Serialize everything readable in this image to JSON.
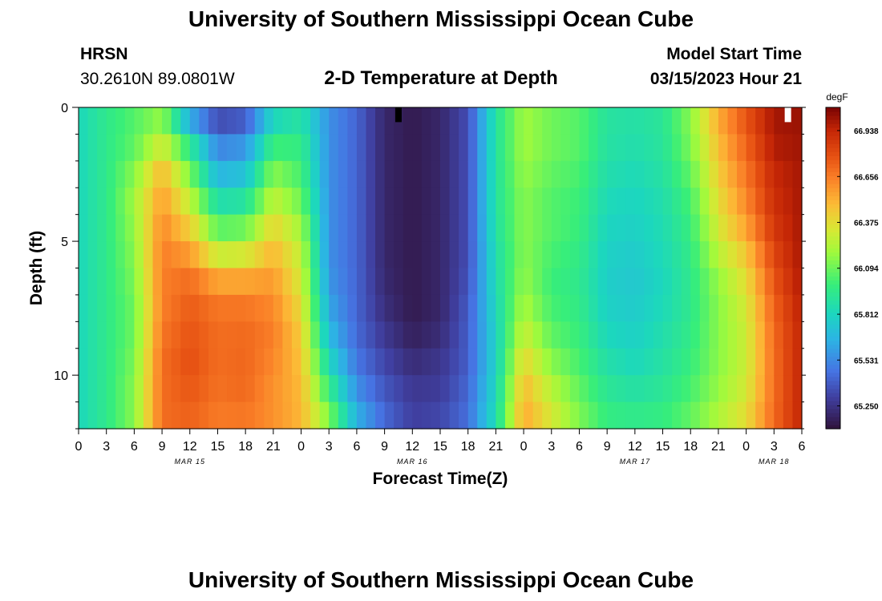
{
  "page": {
    "title": "University of Southern Mississippi Ocean Cube",
    "footer_title": "University of Southern Mississippi Ocean Cube",
    "station_name": "HRSN",
    "station_coords": "30.2610N  89.0801W",
    "plot_title": "2-D Temperature at Depth",
    "model_label": "Model Start Time",
    "model_time": "03/15/2023 Hour 21"
  },
  "chart_data": {
    "type": "heatmap",
    "title": "2-D Temperature at Depth",
    "xlabel": "Forecast Time(Z)",
    "ylabel": "Depth (ft)",
    "x_tick_labels": [
      "0",
      "3",
      "6",
      "9",
      "12",
      "15",
      "18",
      "21",
      "0",
      "3",
      "6",
      "9",
      "12",
      "15",
      "18",
      "21",
      "0",
      "3",
      "6",
      "9",
      "12",
      "15",
      "18",
      "21",
      "0",
      "3",
      "6"
    ],
    "date_labels": [
      {
        "label": "MAR 15",
        "tick_index": 4
      },
      {
        "label": "MAR 16",
        "tick_index": 12
      },
      {
        "label": "MAR 17",
        "tick_index": 20
      },
      {
        "label": "MAR 18",
        "tick_index": 25
      }
    ],
    "y_tick_labels": [
      "0",
      "5",
      "10"
    ],
    "y_ticks": [
      0,
      5,
      10
    ],
    "ylim": [
      0,
      12
    ],
    "y_reversed": true,
    "colorbar": {
      "unit": "degF",
      "tick_labels": [
        "66.938",
        "66.656",
        "66.375",
        "66.094",
        "65.812",
        "65.531",
        "65.250"
      ],
      "ticks": [
        66.938,
        66.656,
        66.375,
        66.094,
        65.812,
        65.531,
        65.25
      ],
      "range": [
        65.11,
        67.08
      ]
    },
    "grid": false,
    "time_start": "03/15/2023 Hour 00",
    "time_step_hours": 3,
    "depths_ft": [
      0,
      1,
      2,
      3,
      4,
      5,
      6,
      7,
      8,
      9,
      10,
      11,
      12
    ],
    "columns": [
      {
        "hour": 0,
        "temps": [
          65.82,
          65.82,
          65.82,
          65.82,
          65.82,
          65.82,
          65.82,
          65.82,
          65.82,
          65.82,
          65.82,
          65.82,
          65.82
        ]
      },
      {
        "hour": 3,
        "temps": [
          65.95,
          65.95,
          65.95,
          65.95,
          65.95,
          65.95,
          65.95,
          65.95,
          65.95,
          65.95,
          65.95,
          65.95,
          65.95
        ]
      },
      {
        "hour": 6,
        "temps": [
          66.05,
          66.05,
          66.1,
          66.2,
          66.2,
          66.15,
          66.15,
          66.1,
          66.1,
          66.1,
          66.15,
          66.15,
          66.15
        ]
      },
      {
        "hour": 9,
        "temps": [
          66.15,
          66.2,
          66.45,
          66.55,
          66.6,
          66.65,
          66.65,
          66.65,
          66.65,
          66.7,
          66.7,
          66.7,
          66.7
        ]
      },
      {
        "hour": 12,
        "temps": [
          65.45,
          65.85,
          66.05,
          66.2,
          66.35,
          66.5,
          66.65,
          66.75,
          66.75,
          66.8,
          66.78,
          66.75,
          66.72
        ]
      },
      {
        "hour": 15,
        "temps": [
          65.25,
          65.45,
          65.6,
          65.75,
          65.98,
          66.15,
          66.45,
          66.65,
          66.7,
          66.7,
          66.7,
          66.68,
          66.65
        ]
      },
      {
        "hour": 18,
        "temps": [
          65.3,
          65.5,
          65.65,
          65.8,
          66.0,
          66.2,
          66.45,
          66.65,
          66.7,
          66.72,
          66.72,
          66.7,
          66.65
        ]
      },
      {
        "hour": 21,
        "temps": [
          65.75,
          65.9,
          66.1,
          66.2,
          66.35,
          66.45,
          66.55,
          66.6,
          66.65,
          66.65,
          66.6,
          66.6,
          66.6
        ]
      },
      {
        "hour": 24,
        "temps": [
          65.85,
          65.95,
          66.0,
          66.05,
          66.15,
          66.25,
          66.3,
          66.35,
          66.42,
          66.45,
          66.48,
          66.5,
          66.5
        ]
      },
      {
        "hour": 27,
        "temps": [
          65.55,
          65.55,
          65.55,
          65.55,
          65.55,
          65.55,
          65.55,
          65.6,
          65.65,
          65.75,
          65.9,
          66.05,
          66.2
        ]
      },
      {
        "hour": 30,
        "temps": [
          65.42,
          65.42,
          65.42,
          65.42,
          65.42,
          65.42,
          65.42,
          65.42,
          65.42,
          65.45,
          65.5,
          65.6,
          65.7
        ]
      },
      {
        "hour": 33,
        "temps": [
          65.2,
          65.2,
          65.2,
          65.2,
          65.2,
          65.2,
          65.2,
          65.22,
          65.25,
          65.3,
          65.35,
          65.4,
          65.45
        ]
      },
      {
        "hour": 36,
        "temps": [
          65.15,
          65.15,
          65.15,
          65.15,
          65.15,
          65.15,
          65.15,
          65.15,
          65.15,
          65.2,
          65.25,
          65.3,
          65.3
        ]
      },
      {
        "hour": 39,
        "temps": [
          65.2,
          65.2,
          65.2,
          65.2,
          65.2,
          65.2,
          65.2,
          65.2,
          65.2,
          65.25,
          65.28,
          65.3,
          65.35
        ]
      },
      {
        "hour": 42,
        "temps": [
          65.35,
          65.35,
          65.35,
          65.35,
          65.35,
          65.35,
          65.35,
          65.38,
          65.4,
          65.4,
          65.4,
          65.45,
          65.45
        ]
      },
      {
        "hour": 45,
        "temps": [
          65.9,
          65.9,
          65.9,
          65.9,
          65.9,
          65.88,
          65.85,
          65.85,
          65.8,
          65.8,
          65.8,
          65.85,
          65.85
        ]
      },
      {
        "hour": 48,
        "temps": [
          66.2,
          66.2,
          66.2,
          66.15,
          66.15,
          66.15,
          66.15,
          66.2,
          66.25,
          66.35,
          66.45,
          66.52,
          66.55
        ]
      },
      {
        "hour": 51,
        "temps": [
          66.1,
          66.1,
          66.1,
          66.05,
          66.05,
          66.05,
          66.0,
          66.0,
          66.05,
          66.1,
          66.2,
          66.3,
          66.35
        ]
      },
      {
        "hour": 54,
        "temps": [
          66.05,
          66.05,
          66.05,
          66.0,
          66.0,
          65.98,
          65.95,
          65.95,
          65.98,
          66.0,
          66.05,
          66.1,
          66.15
        ]
      },
      {
        "hour": 57,
        "temps": [
          65.9,
          65.9,
          65.88,
          65.85,
          65.82,
          65.8,
          65.78,
          65.78,
          65.8,
          65.85,
          65.9,
          65.95,
          66.0
        ]
      },
      {
        "hour": 60,
        "temps": [
          65.88,
          65.88,
          65.85,
          65.82,
          65.8,
          65.78,
          65.75,
          65.75,
          65.78,
          65.8,
          65.85,
          65.92,
          65.98
        ]
      },
      {
        "hour": 63,
        "temps": [
          65.92,
          65.92,
          65.9,
          65.88,
          65.85,
          65.85,
          65.82,
          65.82,
          65.85,
          65.88,
          65.9,
          65.95,
          66.0
        ]
      },
      {
        "hour": 66,
        "temps": [
          66.15,
          66.15,
          66.1,
          66.05,
          66.0,
          65.98,
          65.95,
          65.95,
          65.95,
          65.98,
          66.0,
          66.05,
          66.1
        ]
      },
      {
        "hour": 69,
        "temps": [
          66.55,
          66.5,
          66.45,
          66.4,
          66.35,
          66.3,
          66.2,
          66.15,
          66.15,
          66.15,
          66.15,
          66.2,
          66.25
        ]
      },
      {
        "hour": 72,
        "temps": [
          66.8,
          66.75,
          66.7,
          66.65,
          66.6,
          66.5,
          66.4,
          66.35,
          66.3,
          66.3,
          66.3,
          66.35,
          66.4
        ]
      },
      {
        "hour": 75,
        "temps": [
          67.0,
          67.0,
          66.95,
          66.92,
          66.9,
          66.85,
          66.8,
          66.75,
          66.72,
          66.7,
          66.7,
          66.7,
          66.72
        ]
      },
      {
        "hour": 78,
        "temps": [
          67.02,
          67.02,
          67.0,
          67.0,
          67.0,
          67.0,
          67.0,
          66.98,
          66.95,
          66.95,
          66.95,
          66.95,
          66.95
        ]
      }
    ],
    "markers": [
      {
        "hour": 34.5,
        "depth_range": [
          0,
          0.55
        ],
        "color": "#000000"
      },
      {
        "hour": 76.5,
        "depth_range": [
          0,
          0.55
        ],
        "color": "#ffffff"
      }
    ]
  }
}
